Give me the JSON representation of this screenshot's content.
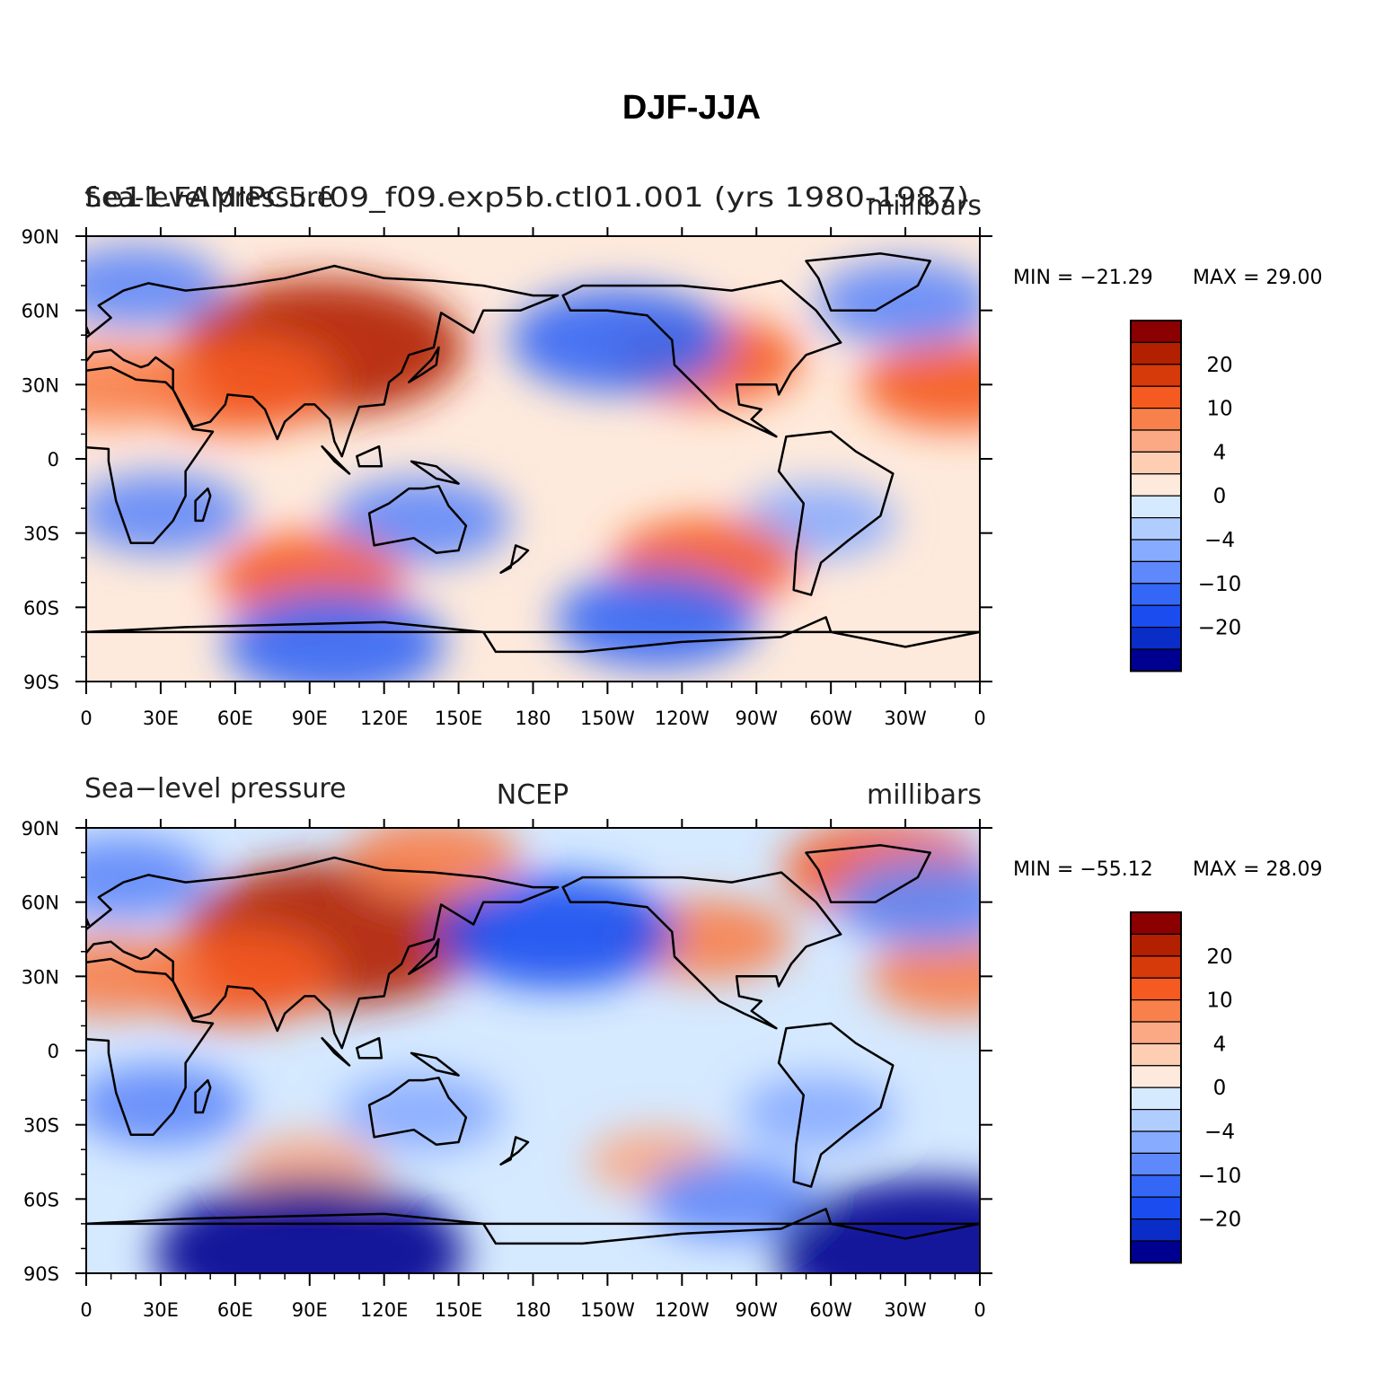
{
  "figure": {
    "title": "DJF-JJA"
  },
  "panels": [
    {
      "left_title": "Sea-level pressure",
      "center_title": "f.e11.FAMIPC5.f09_f09.exp5b.ctl01.001 (yrs 1980-1987)",
      "right_title": "millibars",
      "min_label": "MIN = −21.29",
      "max_label": "MAX =   29.00",
      "min": -21.29,
      "max": 29.0
    },
    {
      "left_title": "Sea−level pressure",
      "center_title": "NCEP",
      "right_title": "millibars",
      "min_label": "MIN = −55.12",
      "max_label": "MAX =   28.09",
      "min": -55.12,
      "max": 28.09
    }
  ],
  "axes": {
    "lon_ticks": [
      "0",
      "30E",
      "60E",
      "90E",
      "120E",
      "150E",
      "180",
      "150W",
      "120W",
      "90W",
      "60W",
      "30W",
      "0"
    ],
    "lat_ticks": [
      "90N",
      "60N",
      "30N",
      "0",
      "30S",
      "60S",
      "90S"
    ]
  },
  "colorbar": {
    "colors": [
      "#8b0000",
      "#b22000",
      "#d63a0b",
      "#f55a20",
      "#f8804b",
      "#fba884",
      "#fdcdb4",
      "#feeadc",
      "#d5e9ff",
      "#b1cdff",
      "#87abff",
      "#5f88fa",
      "#3467f5",
      "#1a4cf0",
      "#0a2dc8",
      "#000090"
    ],
    "labels": [
      "20",
      "10",
      "4",
      "0",
      "−4",
      "−10",
      "−20"
    ]
  },
  "chart_data": [
    {
      "type": "heatmap",
      "title": "f.e11.FAMIPC5.f09_f09.exp5b.ctl01.001 (yrs 1980-1987)",
      "variable": "Sea-level pressure",
      "units": "millibars",
      "season": "DJF-JJA",
      "x_range": [
        0,
        360
      ],
      "y_range": [
        -90,
        90
      ],
      "min": -21.29,
      "max": 29.0,
      "features": [
        {
          "lon": 95,
          "lat": 45,
          "value": 22
        },
        {
          "lon": 60,
          "lat": 30,
          "value": 12
        },
        {
          "lon": 10,
          "lat": 30,
          "value": 8
        },
        {
          "lon": 250,
          "lat": 40,
          "value": 10
        },
        {
          "lon": 350,
          "lat": 30,
          "value": 10
        },
        {
          "lon": 215,
          "lat": 48,
          "value": -14
        },
        {
          "lon": 330,
          "lat": 63,
          "value": -9
        },
        {
          "lon": 20,
          "lat": 70,
          "value": -8
        },
        {
          "lon": 30,
          "lat": -22,
          "value": -8
        },
        {
          "lon": 135,
          "lat": -25,
          "value": -9
        },
        {
          "lon": 295,
          "lat": -25,
          "value": -6
        },
        {
          "lon": 90,
          "lat": -48,
          "value": 10
        },
        {
          "lon": 250,
          "lat": -42,
          "value": 10
        },
        {
          "lon": 230,
          "lat": -65,
          "value": -12
        },
        {
          "lon": 100,
          "lat": -75,
          "value": -14
        }
      ]
    },
    {
      "type": "heatmap",
      "title": "NCEP",
      "variable": "Sea−level pressure",
      "units": "millibars",
      "season": "DJF-JJA",
      "x_range": [
        0,
        360
      ],
      "y_range": [
        -90,
        90
      ],
      "min": -55.12,
      "max": 28.09,
      "features": [
        {
          "lon": 100,
          "lat": 47,
          "value": 24
        },
        {
          "lon": 60,
          "lat": 30,
          "value": 12
        },
        {
          "lon": 10,
          "lat": 30,
          "value": 8
        },
        {
          "lon": 140,
          "lat": 78,
          "value": 8
        },
        {
          "lon": 250,
          "lat": 45,
          "value": 8
        },
        {
          "lon": 322,
          "lat": 73,
          "value": 12
        },
        {
          "lon": 350,
          "lat": 30,
          "value": 8
        },
        {
          "lon": 190,
          "lat": 48,
          "value": -16
        },
        {
          "lon": 15,
          "lat": 70,
          "value": -8
        },
        {
          "lon": 340,
          "lat": 60,
          "value": -10
        },
        {
          "lon": 30,
          "lat": -22,
          "value": -8
        },
        {
          "lon": 135,
          "lat": -25,
          "value": -7
        },
        {
          "lon": 295,
          "lat": -25,
          "value": -6
        },
        {
          "lon": 90,
          "lat": -48,
          "value": 5
        },
        {
          "lon": 230,
          "lat": -45,
          "value": 4
        },
        {
          "lon": 260,
          "lat": -60,
          "value": -8
        },
        {
          "lon": 90,
          "lat": -82,
          "value": -45
        },
        {
          "lon": 340,
          "lat": -82,
          "value": -40
        }
      ]
    }
  ]
}
